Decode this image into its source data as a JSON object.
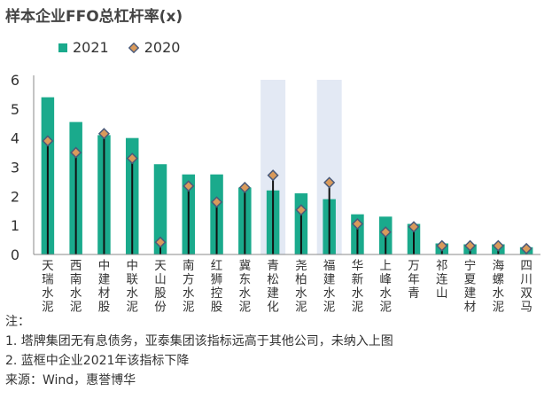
{
  "chart_data": {
    "type": "bar",
    "title": "样本企业FFO总杠杆率(x)",
    "categories": [
      "天瑞水泥",
      "西南水泥",
      "中建材股份",
      "中联水泥",
      "天山股份",
      "南方水泥",
      "红狮控股",
      "冀东水泥",
      "青松建化",
      "尧柏水泥",
      "福建水泥",
      "华新水泥",
      "上峰水泥",
      "万年青",
      "祁连山",
      "宁夏建材",
      "海螺水泥",
      "四川双马"
    ],
    "series": [
      {
        "name": "2021",
        "type": "bar",
        "values": [
          5.4,
          4.55,
          4.1,
          4.0,
          3.1,
          2.75,
          2.75,
          2.3,
          2.2,
          2.1,
          1.9,
          1.38,
          1.3,
          1.05,
          0.38,
          0.35,
          0.35,
          0.25
        ]
      },
      {
        "name": "2020",
        "type": "marker",
        "values": [
          3.9,
          3.5,
          4.15,
          3.3,
          0.42,
          2.35,
          1.8,
          2.3,
          2.72,
          1.53,
          2.47,
          1.05,
          0.77,
          0.95,
          0.3,
          0.3,
          0.3,
          0.2
        ]
      }
    ],
    "highlighted_categories": [
      "青松建化",
      "福建水泥"
    ],
    "ylim": [
      0,
      6
    ],
    "yticks": [
      0,
      1,
      2,
      3,
      4,
      5,
      6
    ],
    "legend_position": "top-left",
    "grid": false,
    "colors": {
      "bar": "#1aaa8c",
      "marker_fill": "#d99a5b",
      "marker_stroke": "#4a5a7a",
      "highlight": "#e3e9f4",
      "stem": "#111111"
    }
  },
  "notes": {
    "label": "注：",
    "line1": "1. 塔牌集团无有息债务，亚泰集团该指标远高于其他公司，未纳入上图",
    "line2": "2. 蓝框中企业2021年该指标下降",
    "source": "来源：Wind，惠誉博华"
  }
}
